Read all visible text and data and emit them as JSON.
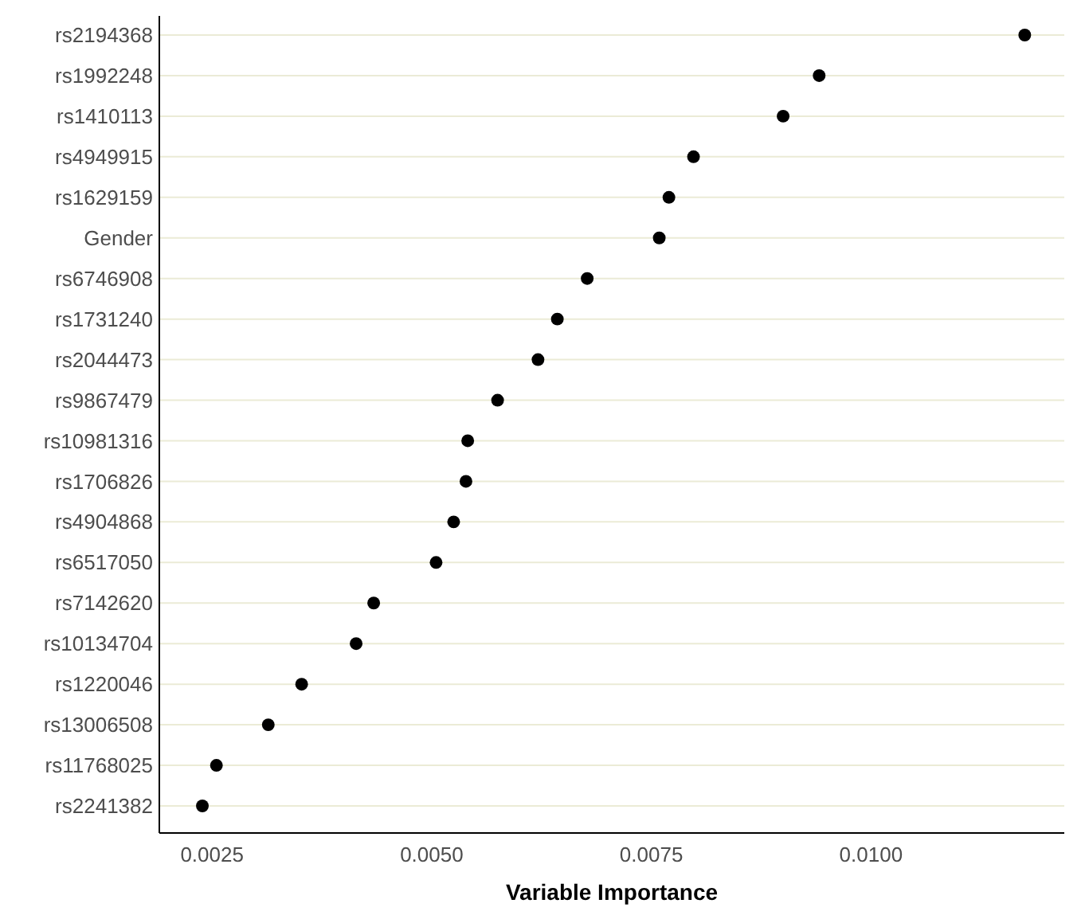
{
  "chart_data": {
    "type": "scatter",
    "orientation": "horizontal",
    "xlabel": "Variable Importance",
    "categories": [
      "rs2194368",
      "rs1992248",
      "rs1410113",
      "rs4949915",
      "rs1629159",
      "Gender",
      "rs6746908",
      "rs1731240",
      "rs2044473",
      "rs9867479",
      "rs10981316",
      "rs1706826",
      "rs4904868",
      "rs6517050",
      "rs7142620",
      "rs10134704",
      "rs1220046",
      "rs13006508",
      "rs11768025",
      "rs2241382"
    ],
    "values": [
      0.01175,
      0.00941,
      0.009,
      0.00798,
      0.0077,
      0.00759,
      0.00677,
      0.00643,
      0.00621,
      0.00575,
      0.00541,
      0.00539,
      0.00525,
      0.00505,
      0.00434,
      0.00414,
      0.00352,
      0.00314,
      0.00255,
      0.00239
    ],
    "color": "#000000",
    "marker": "circle",
    "grid": "y",
    "xlim": [
      0.0019,
      0.0122
    ],
    "xticks": [
      {
        "value": 0.0025,
        "label": "0.0025"
      },
      {
        "value": 0.005,
        "label": "0.0050"
      },
      {
        "value": 0.0075,
        "label": "0.0075"
      },
      {
        "value": 0.01,
        "label": "0.0100"
      }
    ]
  }
}
